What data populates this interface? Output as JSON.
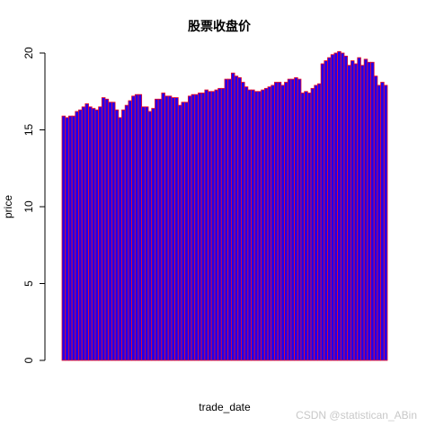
{
  "chart_data": {
    "type": "bar",
    "title": "股票收盘价",
    "xlabel": "trade_date",
    "ylabel": "price",
    "ylim": [
      0,
      20.5
    ],
    "yticks": [
      0,
      5,
      10,
      15,
      20
    ],
    "ytick_labels": [
      "0",
      "5",
      "10",
      "15",
      "20"
    ],
    "grid": false,
    "bar_fill": "#2200ee",
    "bar_border": "#ee1122",
    "values": [
      15.9,
      15.8,
      15.9,
      15.9,
      16.2,
      16.3,
      16.5,
      16.7,
      16.5,
      16.4,
      16.3,
      16.5,
      17.1,
      17.0,
      16.8,
      16.8,
      16.3,
      15.8,
      16.3,
      16.6,
      16.9,
      17.2,
      17.3,
      17.3,
      16.5,
      16.5,
      16.2,
      16.4,
      17.0,
      17.0,
      17.4,
      17.2,
      17.2,
      17.1,
      17.1,
      16.6,
      16.8,
      16.8,
      17.2,
      17.3,
      17.3,
      17.4,
      17.4,
      17.6,
      17.5,
      17.5,
      17.6,
      17.7,
      17.7,
      18.3,
      18.3,
      18.7,
      18.5,
      18.4,
      18.1,
      17.8,
      17.6,
      17.6,
      17.5,
      17.5,
      17.6,
      17.7,
      17.8,
      17.9,
      18.1,
      18.1,
      17.9,
      18.1,
      18.3,
      18.3,
      18.4,
      18.3,
      17.4,
      17.5,
      17.4,
      17.7,
      17.9,
      18.0,
      19.3,
      19.5,
      19.7,
      19.9,
      20.0,
      20.1,
      20.0,
      19.8,
      19.2,
      19.5,
      19.3,
      19.7,
      19.2,
      19.6,
      19.4,
      19.4,
      18.5,
      17.9,
      18.1,
      17.9
    ]
  },
  "watermark": "CSDN @statistican_ABin"
}
